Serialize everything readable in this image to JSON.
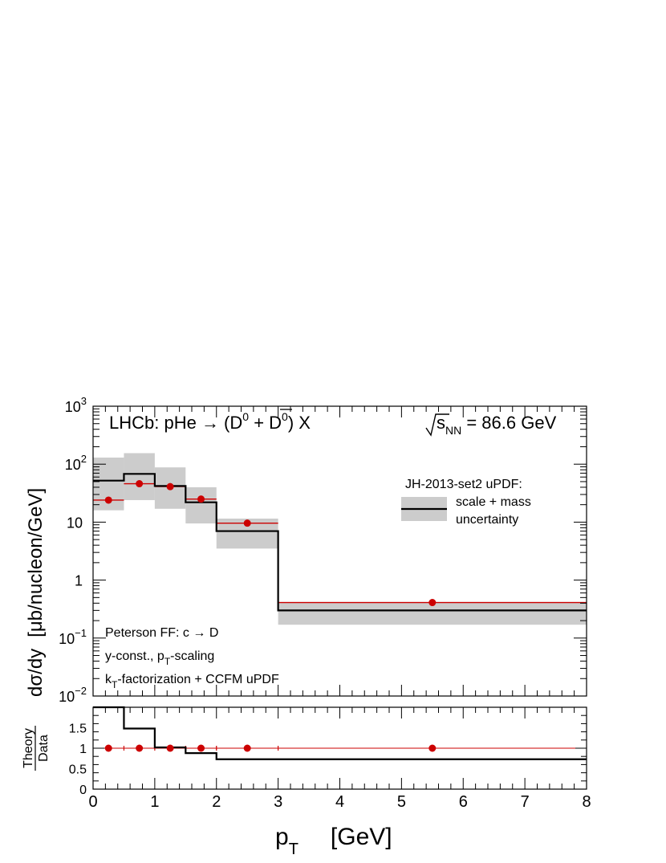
{
  "chart_data": {
    "type": "step",
    "main": {
      "title_left": "LHCb: pHe → (D",
      "title_sup1": "0",
      "title_plus": " + D",
      "title_bar": "‾",
      "title_sup2": "0",
      "title_end": ") X",
      "energy_s": "s",
      "energy_sub": "NN",
      "energy_value": " = 86.6 GeV",
      "ylabel_left": "dσ/dy",
      "ylabel_right": "[μb/nucleon/GeV]",
      "yscale": "log",
      "ylim": [
        0.01,
        1000
      ],
      "ytick_labels": [
        {
          "base": "10",
          "exp": "−2",
          "value": 0.01
        },
        {
          "base": "10",
          "exp": "−1",
          "value": 0.1
        },
        {
          "base": "1",
          "exp": "",
          "value": 1
        },
        {
          "base": "10",
          "exp": "",
          "value": 10
        },
        {
          "base": "10",
          "exp": "2",
          "value": 100
        },
        {
          "base": "10",
          "exp": "3",
          "value": 1000
        }
      ],
      "legend_title": "JH-2013-set2 uPDF:",
      "legend_line1": "scale + mass",
      "legend_line2": "uncertainty",
      "notes": [
        {
          "pre": "Peterson FF: c → D",
          "sub": "",
          "post": ""
        },
        {
          "pre": "y-const., p",
          "sub": "T",
          "post": "-scaling"
        },
        {
          "pre": "k",
          "sub": "T",
          "post": "-factorization + CCFM uPDF"
        }
      ],
      "theory_bins": [
        {
          "x0": 0,
          "x1": 0.5,
          "central": 52,
          "low": 16,
          "high": 130
        },
        {
          "x0": 0.5,
          "x1": 1,
          "central": 68,
          "low": 24,
          "high": 155
        },
        {
          "x0": 1,
          "x1": 1.5,
          "central": 42,
          "low": 17,
          "high": 88
        },
        {
          "x0": 1.5,
          "x1": 2,
          "central": 22,
          "low": 9.5,
          "high": 40
        },
        {
          "x0": 2,
          "x1": 3,
          "central": 7,
          "low": 3.5,
          "high": 11.5
        },
        {
          "x0": 3,
          "x1": 8,
          "central": 0.3,
          "low": 0.17,
          "high": 0.42
        }
      ],
      "data_points": [
        {
          "x": 0.25,
          "xlo": 0,
          "xhi": 0.5,
          "y": 24
        },
        {
          "x": 0.75,
          "xlo": 0.5,
          "xhi": 1,
          "y": 46
        },
        {
          "x": 1.25,
          "xlo": 1,
          "xhi": 1.5,
          "y": 41
        },
        {
          "x": 1.75,
          "xlo": 1.5,
          "xhi": 2,
          "y": 25
        },
        {
          "x": 2.5,
          "xlo": 2,
          "xhi": 3,
          "y": 9.6
        },
        {
          "x": 5.5,
          "xlo": 3,
          "xhi": 8,
          "y": 0.41
        }
      ]
    },
    "ratio": {
      "ylabel_top": "Theory",
      "ylabel_bottom": "Data",
      "ylim": [
        0,
        2
      ],
      "ytick_labels": [
        "0",
        "0.5",
        "1",
        "1.5"
      ],
      "ytick_values": [
        0,
        0.5,
        1,
        1.5
      ],
      "bins": [
        {
          "x0": 0,
          "x1": 0.5,
          "value": 2.17
        },
        {
          "x0": 0.5,
          "x1": 1,
          "value": 1.48
        },
        {
          "x0": 1,
          "x1": 1.5,
          "value": 1.02
        },
        {
          "x0": 1.5,
          "x1": 2,
          "value": 0.88
        },
        {
          "x0": 2,
          "x1": 3,
          "value": 0.73
        },
        {
          "x0": 3,
          "x1": 8,
          "value": 0.73
        }
      ],
      "points": [
        {
          "x": 0.25,
          "xlo": 0,
          "xhi": 0.5,
          "y": 1
        },
        {
          "x": 0.75,
          "xlo": 0.5,
          "xhi": 1,
          "y": 1
        },
        {
          "x": 1.25,
          "xlo": 1,
          "xhi": 1.5,
          "y": 1
        },
        {
          "x": 1.75,
          "xlo": 1.5,
          "xhi": 2,
          "y": 1
        },
        {
          "x": 2.5,
          "xlo": 2,
          "xhi": 3,
          "y": 1
        },
        {
          "x": 5.5,
          "xlo": 3,
          "xhi": 8,
          "y": 1
        }
      ]
    },
    "xaxis": {
      "label": "p",
      "label_sub": "T",
      "label_unit": "[GeV]",
      "xlim": [
        0,
        8
      ],
      "tick_labels": [
        "0",
        "1",
        "2",
        "3",
        "4",
        "5",
        "6",
        "7",
        "8"
      ],
      "tick_values": [
        0,
        1,
        2,
        3,
        4,
        5,
        6,
        7,
        8
      ]
    },
    "colors": {
      "band": "#cccccc",
      "theory_line": "#000000",
      "data": "#cc0000",
      "axis": "#000000"
    }
  }
}
